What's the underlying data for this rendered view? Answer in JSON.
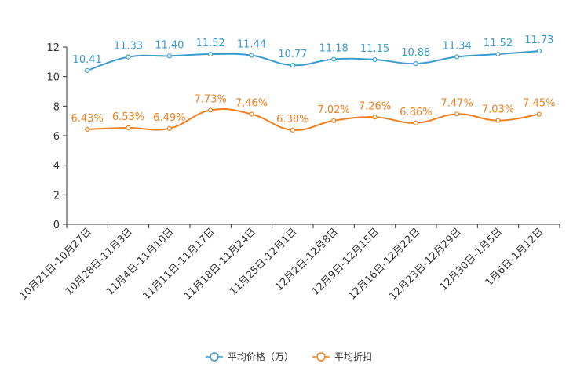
{
  "chart_data": {
    "type": "line",
    "title": "",
    "xlabel": "",
    "ylabel": "",
    "ylim": [
      0,
      12
    ],
    "yticks": [
      0,
      2,
      4,
      6,
      8,
      10,
      12
    ],
    "grid": false,
    "legend_position": "bottom-center",
    "categories": [
      "10月21日-10月27日",
      "10月28日-11月3日",
      "11月4日-11月10日",
      "11月11日-11月17日",
      "11月18日-11月24日",
      "11月25日-12月1日",
      "12月2日-12月8日",
      "12月9日-12月15日",
      "12月16日-12月22日",
      "12月23日-12月29日",
      "12月30日-1月5日",
      "1月6日-1月12日"
    ],
    "series": [
      {
        "name": "平均价格（万）",
        "color": "#3a9bd0",
        "values": [
          10.41,
          11.33,
          11.4,
          11.52,
          11.44,
          10.77,
          11.18,
          11.15,
          10.88,
          11.34,
          11.52,
          11.73
        ],
        "labels": [
          "10.41",
          "11.33",
          "11.40",
          "11.52",
          "11.44",
          "10.77",
          "11.18",
          "11.15",
          "10.88",
          "11.34",
          "11.52",
          "11.73"
        ]
      },
      {
        "name": "平均折扣",
        "color": "#f07f1e",
        "values": [
          6.43,
          6.53,
          6.49,
          7.73,
          7.46,
          6.38,
          7.02,
          7.26,
          6.86,
          7.47,
          7.03,
          7.45
        ],
        "labels": [
          "6.43%",
          "6.53%",
          "6.49%",
          "7.73%",
          "7.46%",
          "6.38%",
          "7.02%",
          "7.26%",
          "6.86%",
          "7.47%",
          "7.03%",
          "7.45%"
        ]
      }
    ]
  }
}
